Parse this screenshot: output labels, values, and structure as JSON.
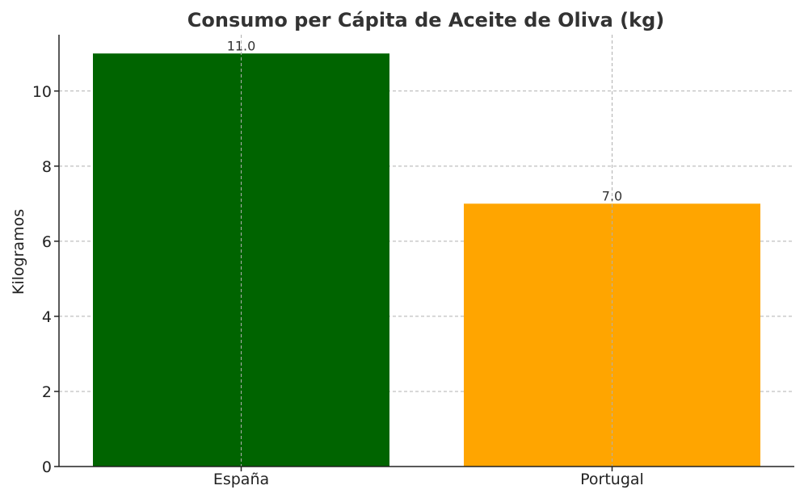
{
  "chart_data": {
    "type": "bar",
    "title": "Consumo per Cápita de Aceite de Oliva (kg)",
    "xlabel": "",
    "ylabel": "Kilogramos",
    "categories": [
      "España",
      "Portugal"
    ],
    "values": [
      11.0,
      7.0
    ],
    "data_labels": [
      "11.0",
      "7.0"
    ],
    "colors": [
      "#006400",
      "#FFA500"
    ],
    "ylim": [
      0,
      11.5
    ],
    "yticks": [
      0,
      2,
      4,
      6,
      8,
      10
    ],
    "grid": true
  }
}
